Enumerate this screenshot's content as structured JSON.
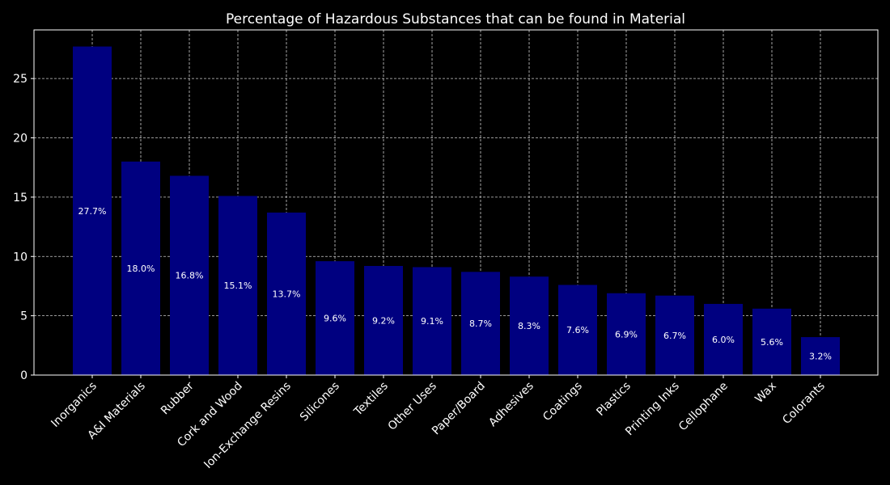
{
  "chart_data": {
    "type": "bar",
    "title": "Percentage of Hazardous Substances that can be found in Material",
    "xlabel": "",
    "ylabel": "",
    "categories": [
      "Inorganics",
      "A&I Materials",
      "Rubber",
      "Cork and Wood",
      "Ion-Exchange Resins",
      "Silicones",
      "Textiles",
      "Other Uses",
      "Paper/Board",
      "Adhesives",
      "Coatings",
      "Plastics",
      "Printing Inks",
      "Cellophane",
      "Wax",
      "Colorants"
    ],
    "values": [
      27.7,
      18.0,
      16.8,
      15.1,
      13.7,
      9.6,
      9.2,
      9.1,
      8.7,
      8.3,
      7.6,
      6.9,
      6.7,
      6.0,
      5.6,
      3.2
    ],
    "value_labels": [
      "27.7%",
      "18.0%",
      "16.8%",
      "15.1%",
      "13.7%",
      "9.6%",
      "9.2%",
      "9.1%",
      "8.7%",
      "8.3%",
      "7.6%",
      "6.9%",
      "6.7%",
      "6.0%",
      "5.6%",
      "3.2%"
    ],
    "yticks": [
      0,
      5,
      10,
      15,
      20,
      25
    ],
    "ytick_labels": [
      "0",
      "5",
      "10",
      "15",
      "20",
      "25"
    ],
    "ylim": [
      0,
      29.1
    ],
    "grid": true,
    "colors": {
      "background": "#000000",
      "bar": "#000080",
      "text": "#ffffff",
      "grid": "#cccccc",
      "axes": "#ffffff"
    }
  }
}
